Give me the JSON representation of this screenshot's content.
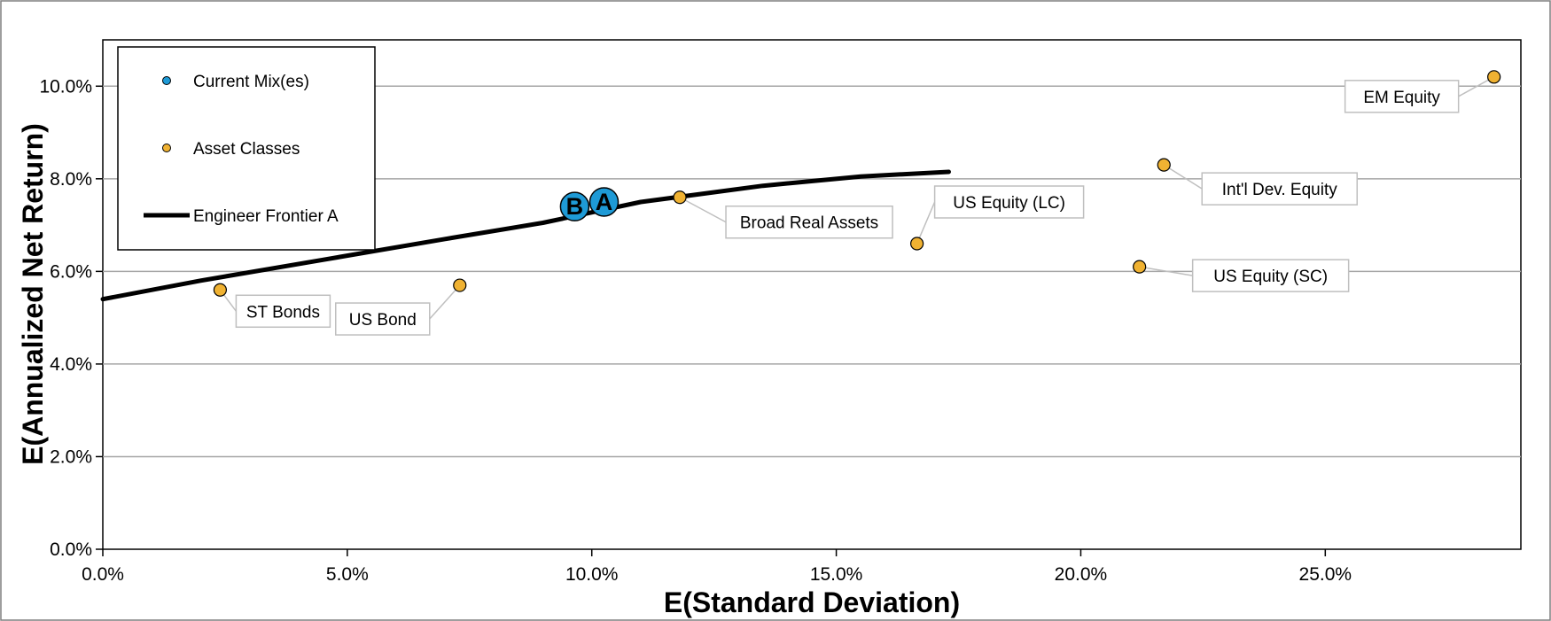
{
  "chart_data": {
    "type": "scatter",
    "xlabel": "E(Standard Deviation)",
    "ylabel": "E(Annualized Net Return)",
    "xlim": [
      0,
      0.29
    ],
    "ylim": [
      0,
      0.11
    ],
    "x_ticks": [
      0,
      0.05,
      0.1,
      0.15,
      0.2,
      0.25
    ],
    "x_tick_labels": [
      "0.0%",
      "5.0%",
      "10.0%",
      "15.0%",
      "20.0%",
      "25.0%"
    ],
    "y_ticks": [
      0,
      0.02,
      0.04,
      0.06,
      0.08,
      0.1
    ],
    "y_tick_labels": [
      "0.0%",
      "2.0%",
      "4.0%",
      "6.0%",
      "8.0%",
      "10.0%"
    ],
    "grid": "horizontal",
    "legend_position": "top-left",
    "legend": [
      {
        "label": "Current Mix(es)",
        "kind": "dot",
        "color": "#1e9ad6"
      },
      {
        "label": "Asset Classes",
        "kind": "dot",
        "color": "#f0b232"
      },
      {
        "label": "Engineer Frontier A",
        "kind": "line",
        "color": "#000000"
      }
    ],
    "series": [
      {
        "name": "Current Mix(es)",
        "color": "#1e9ad6",
        "points": [
          {
            "label": "A",
            "x": 0.1025,
            "y": 0.075
          },
          {
            "label": "B",
            "x": 0.0965,
            "y": 0.074
          }
        ]
      },
      {
        "name": "Asset Classes",
        "color": "#f0b232",
        "points": [
          {
            "label": "ST Bonds",
            "x": 0.024,
            "y": 0.056
          },
          {
            "label": "US Bond",
            "x": 0.073,
            "y": 0.057
          },
          {
            "label": "Broad Real Assets",
            "x": 0.118,
            "y": 0.076
          },
          {
            "label": "US Equity (LC)",
            "x": 0.1665,
            "y": 0.066
          },
          {
            "label": "US Equity (SC)",
            "x": 0.212,
            "y": 0.061
          },
          {
            "label": "Int'l Dev. Equity",
            "x": 0.217,
            "y": 0.083
          },
          {
            "label": "EM Equity",
            "x": 0.2845,
            "y": 0.102
          }
        ]
      },
      {
        "name": "Engineer Frontier A",
        "color": "#000000",
        "type": "line",
        "x": [
          0,
          0.02,
          0.045,
          0.07,
          0.09,
          0.11,
          0.135,
          0.155,
          0.173
        ],
        "y": [
          0.054,
          0.058,
          0.0625,
          0.067,
          0.0705,
          0.075,
          0.0785,
          0.0805,
          0.0815
        ]
      }
    ]
  }
}
